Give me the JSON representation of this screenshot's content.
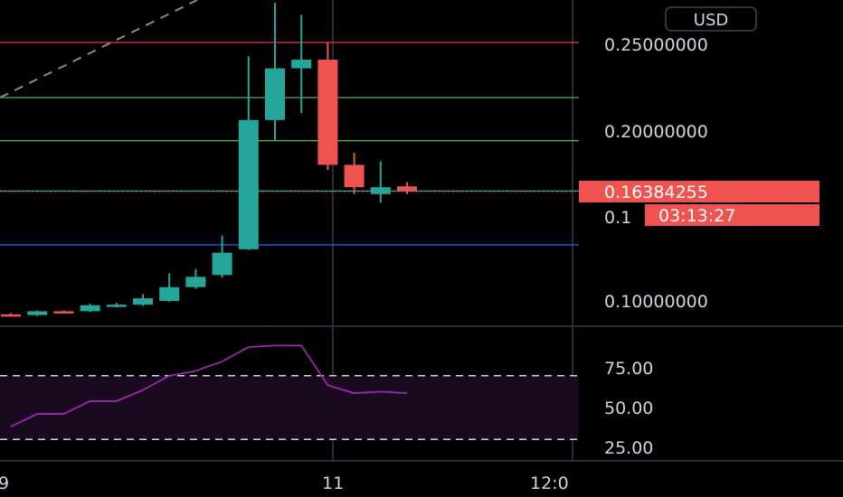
{
  "currency_button": "USD",
  "colors": {
    "up": "#26a69a",
    "down": "#ef5350",
    "rsi_line": "#9c27b0",
    "rsi_band": "#1a0a1f",
    "line_red": "#f23645",
    "line_green": "#4caf50",
    "line_teal": "#26a69a",
    "line_blue": "#2962ff"
  },
  "chart_data": {
    "type": "candlestick",
    "price_axis": {
      "ticks": [
        "0.25000000",
        "0.20000000",
        "0.10000000"
      ],
      "partial_tick": "0.1"
    },
    "time_axis": {
      "ticks": [
        "9",
        "11",
        "12:0"
      ]
    },
    "last_price": "0.16384255",
    "countdown": "03:13:27",
    "horizontal_levels": [
      {
        "price": 0.25,
        "color": "red"
      },
      {
        "price": 0.218,
        "color": "green"
      },
      {
        "price": 0.193,
        "color": "green"
      },
      {
        "price": 0.1638,
        "color": "teal"
      },
      {
        "price": 0.1325,
        "color": "blue"
      }
    ],
    "candles": [
      {
        "o": 0.0922,
        "h": 0.0929,
        "l": 0.0912,
        "c": 0.0918
      },
      {
        "o": 0.0918,
        "h": 0.0945,
        "l": 0.0912,
        "c": 0.094
      },
      {
        "o": 0.094,
        "h": 0.0945,
        "l": 0.0928,
        "c": 0.0935
      },
      {
        "o": 0.094,
        "h": 0.0985,
        "l": 0.0935,
        "c": 0.0975
      },
      {
        "o": 0.0972,
        "h": 0.099,
        "l": 0.0962,
        "c": 0.0978
      },
      {
        "o": 0.0978,
        "h": 0.104,
        "l": 0.0972,
        "c": 0.1015
      },
      {
        "o": 0.1,
        "h": 0.116,
        "l": 0.0995,
        "c": 0.108
      },
      {
        "o": 0.108,
        "h": 0.1185,
        "l": 0.107,
        "c": 0.114
      },
      {
        "o": 0.115,
        "h": 0.138,
        "l": 0.1135,
        "c": 0.128
      },
      {
        "o": 0.13,
        "h": 0.242,
        "l": 0.1295,
        "c": 0.205
      },
      {
        "o": 0.205,
        "h": 0.273,
        "l": 0.193,
        "c": 0.235
      },
      {
        "o": 0.235,
        "h": 0.266,
        "l": 0.209,
        "c": 0.24
      },
      {
        "o": 0.24,
        "h": 0.25,
        "l": 0.176,
        "c": 0.179
      },
      {
        "o": 0.179,
        "h": 0.186,
        "l": 0.162,
        "c": 0.166
      },
      {
        "o": 0.162,
        "h": 0.181,
        "l": 0.157,
        "c": 0.166
      },
      {
        "o": 0.1665,
        "h": 0.169,
        "l": 0.162,
        "c": 0.1638
      }
    ],
    "rsi": {
      "ticks": [
        "75.00",
        "50.00",
        "25.00"
      ],
      "upper": 70,
      "lower": 30,
      "values": [
        38,
        46,
        46,
        54,
        54,
        61,
        70,
        73,
        79,
        88,
        89,
        89,
        64,
        59,
        60,
        59
      ]
    }
  }
}
